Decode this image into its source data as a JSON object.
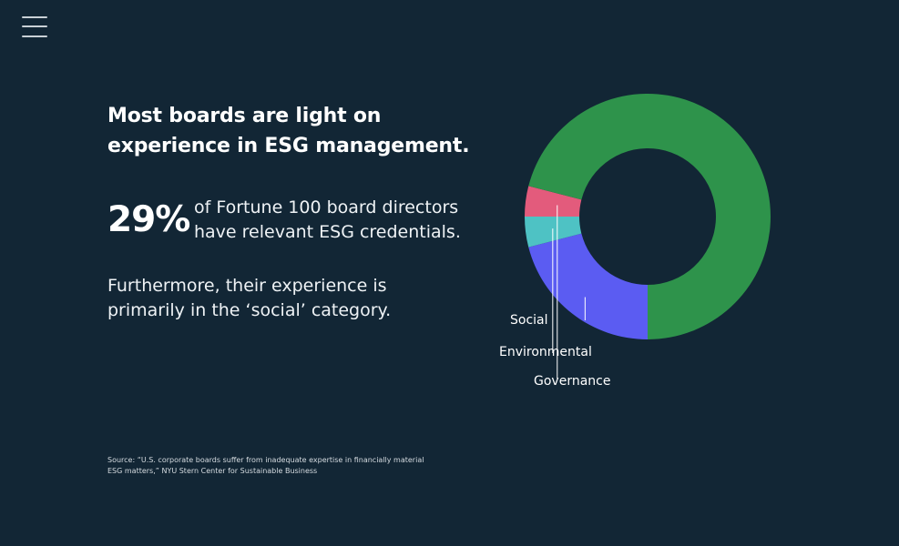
{
  "nav": {
    "menu_icon": "hamburger-menu-icon"
  },
  "content": {
    "headline": "Most boards are light on experience in ESG management.",
    "stat_value": "29%",
    "stat_text": "of Fortune 100 board directors have relevant ESG credentials.",
    "paragraph": "Furthermore, their experience is primarily in the ‘social’ category.",
    "source": "Source: “U.S. corporate boards suffer from inadequate expertise in financially material ESG matters,” NYU Stern Center for Sustainable Business"
  },
  "chart_data": {
    "type": "pie",
    "series": [
      {
        "name": "Social",
        "value": 21,
        "color": "#5b5cf2"
      },
      {
        "name": "Environmental",
        "value": 4,
        "color": "#4ec2c4"
      },
      {
        "name": "Governance",
        "value": 4,
        "color": "#e35b7c"
      },
      {
        "name": "",
        "value": 71,
        "color": "#2e934b"
      }
    ],
    "style": "donut",
    "title": "",
    "legend": "callout labels at bottom-left"
  }
}
